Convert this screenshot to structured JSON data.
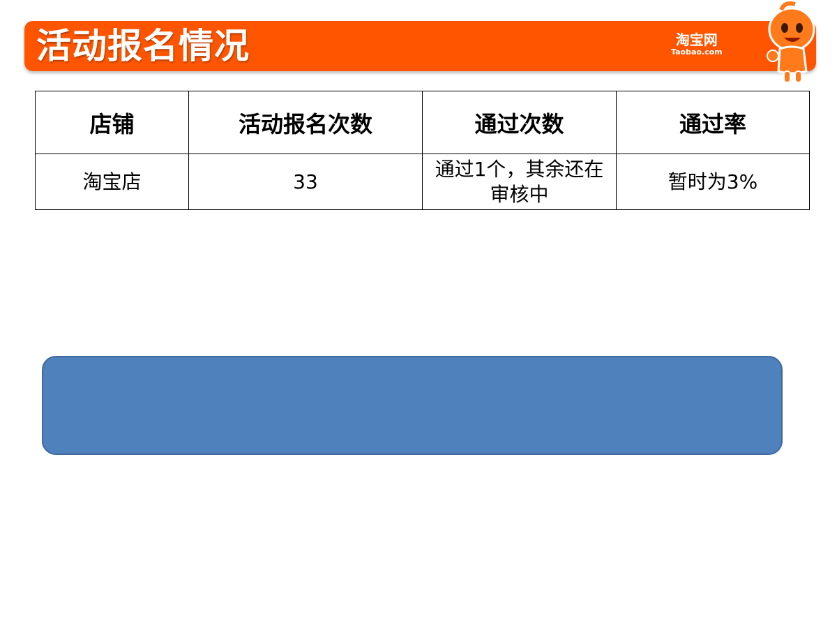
{
  "header": {
    "title": "活动报名情况",
    "logo_cn": "淘宝网",
    "logo_en": "Taobao.com",
    "brand_color": "#FF5500",
    "mascot_icon": "taobao-mascot"
  },
  "table": {
    "headers": [
      "店铺",
      "活动报名次数",
      "通过次数",
      "通过率"
    ],
    "rows": [
      [
        "淘宝店",
        "33",
        "通过1个，其余还在审核中",
        "暂时为3%"
      ]
    ]
  },
  "shape": {
    "fill": "#4F81BD"
  }
}
